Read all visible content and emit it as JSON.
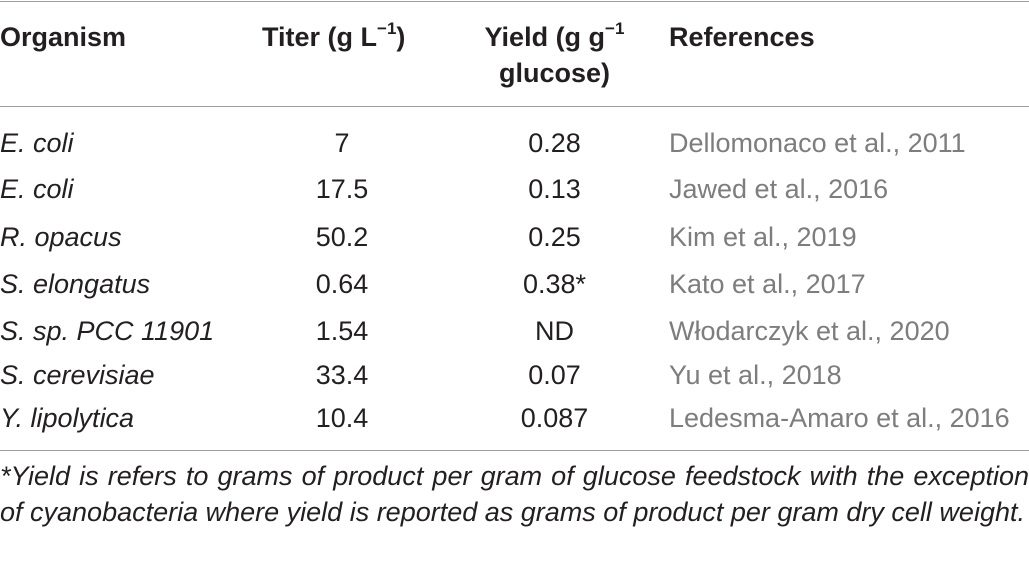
{
  "table": {
    "headers": {
      "organism": "Organism",
      "titer_prefix": "Titer (g L",
      "titer_sup": "−1",
      "titer_suffix": ")",
      "yield_prefix": "Yield (g g",
      "yield_sup": "−1",
      "yield_line2": "glucose)",
      "references": "References"
    },
    "rows": [
      {
        "organism": "E. coli",
        "titer": "7",
        "yield": "0.28",
        "reference": "Dellomonaco et al., 2011"
      },
      {
        "organism": "E. coli",
        "titer": "17.5",
        "yield": "0.13",
        "reference": "Jawed et al., 2016"
      },
      {
        "organism": "R. opacus",
        "titer": "50.2",
        "yield": "0.25",
        "reference": "Kim et al., 2019"
      },
      {
        "organism": "S. elongatus",
        "titer": "0.64",
        "yield": "0.38*",
        "reference": "Kato et al., 2017"
      },
      {
        "organism": "S. sp. PCC 11901",
        "titer": "1.54",
        "yield": "ND",
        "reference": "Włodarczyk et al., 2020"
      },
      {
        "organism": "S. cerevisiae",
        "titer": "33.4",
        "yield": "0.07",
        "reference": "Yu et al., 2018"
      },
      {
        "organism": "Y. lipolytica",
        "titer": "10.4",
        "yield": "0.087",
        "reference": "Ledesma-Amaro et al., 2016"
      }
    ],
    "footnote": "*Yield is refers to grams of product per gram of glucose feedstock with the exception of cyanobacteria where yield is reported as grams of product per gram dry cell weight."
  }
}
